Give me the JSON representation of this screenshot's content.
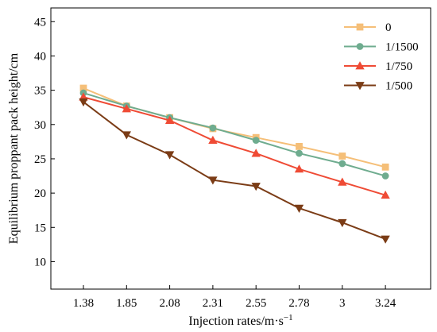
{
  "chart_data": {
    "type": "line",
    "title": "",
    "xlabel": "Injection rates/m·s",
    "xlabel_sup": "−1",
    "ylabel": "Equilibrium proppant pack height/cm",
    "categories": [
      "1.38",
      "1.85",
      "2.08",
      "2.31",
      "2.55",
      "2.78",
      "3",
      "3.24"
    ],
    "ylim": [
      6,
      47
    ],
    "yticks": [
      10,
      15,
      20,
      25,
      30,
      35,
      40,
      45
    ],
    "grid": false,
    "legend_position": "top-right",
    "series": [
      {
        "name": "0",
        "color": "#f5bf78",
        "marker": "square",
        "values": [
          35.3,
          32.7,
          31.0,
          29.4,
          28.1,
          26.8,
          25.4,
          23.8
        ]
      },
      {
        "name": "1/1500",
        "color": "#6fac8f",
        "marker": "circle",
        "values": [
          34.6,
          32.7,
          31.0,
          29.5,
          27.7,
          25.8,
          24.3,
          22.5
        ]
      },
      {
        "name": "1/750",
        "color": "#ef4b35",
        "marker": "triangle-up",
        "values": [
          34.0,
          32.3,
          30.6,
          27.7,
          25.8,
          23.5,
          21.6,
          19.7
        ]
      },
      {
        "name": "1/500",
        "color": "#7b3c16",
        "marker": "triangle-down",
        "values": [
          33.3,
          28.5,
          25.6,
          21.9,
          21.0,
          17.8,
          15.7,
          13.3
        ]
      }
    ]
  }
}
